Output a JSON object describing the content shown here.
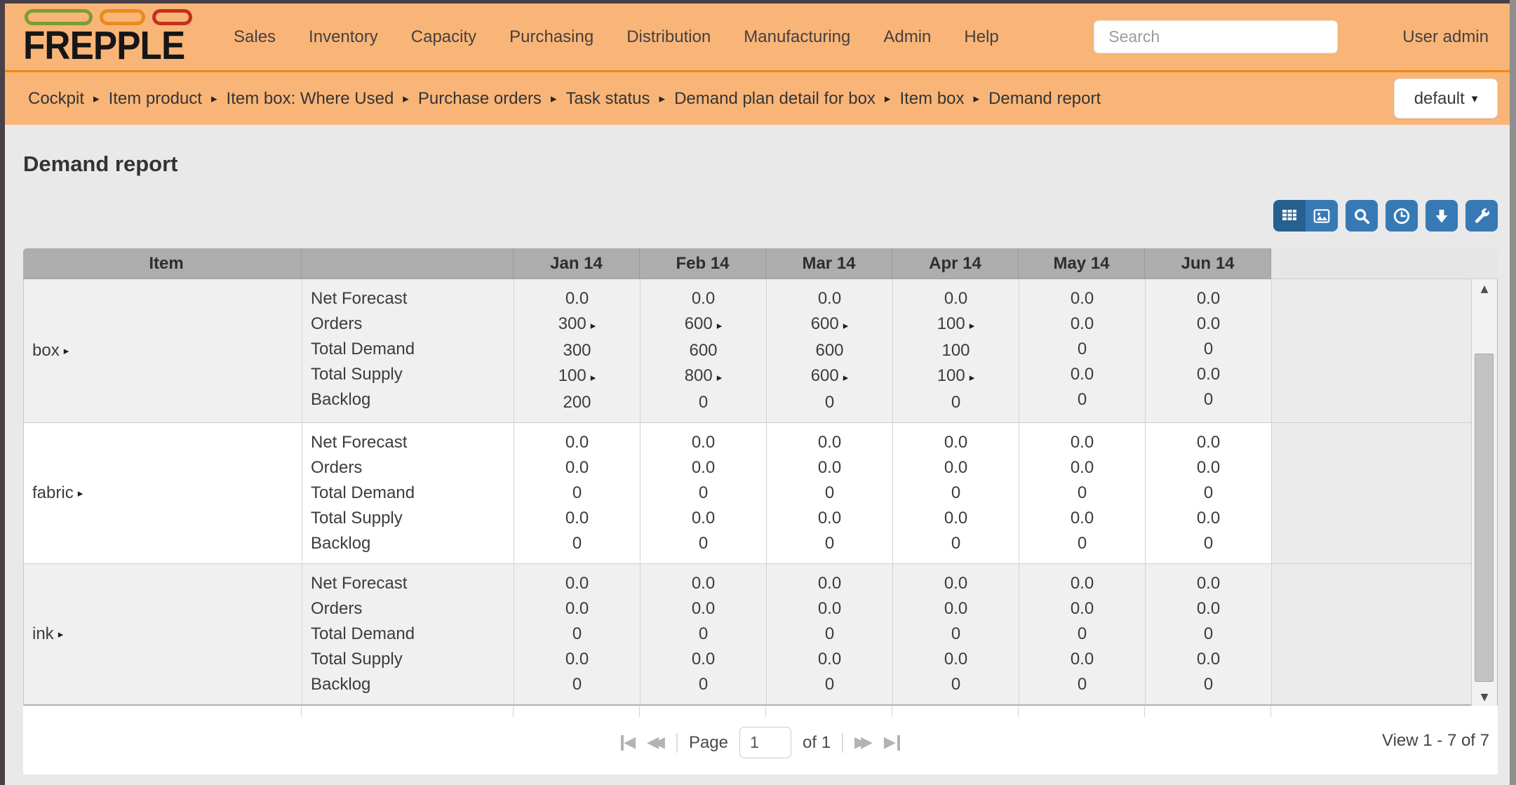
{
  "navbar": {
    "logo_text": "FREPPLE",
    "logo_pill_colors": [
      "#7d9d2f",
      "#e98c1e",
      "#c4301c"
    ],
    "menu_items": [
      "Sales",
      "Inventory",
      "Capacity",
      "Purchasing",
      "Distribution",
      "Manufacturing",
      "Admin",
      "Help"
    ],
    "search_placeholder": "Search",
    "user_label": "User admin"
  },
  "breadcrumb": {
    "items": [
      "Cockpit",
      "Item product",
      "Item box: Where Used",
      "Purchase orders",
      "Task status",
      "Demand plan detail for box",
      "Item box",
      "Demand report"
    ],
    "theme_button_label": "default"
  },
  "page": {
    "title": "Demand report"
  },
  "toolbar": {
    "buttons": [
      "table-view",
      "graph-view",
      "search",
      "time-buckets",
      "download",
      "customize"
    ],
    "accent_blue": "#3779b5",
    "accent_blue_active": "#26608f"
  },
  "grid": {
    "item_header": "Item",
    "month_headers": [
      "Jan 14",
      "Feb 14",
      "Mar 14",
      "Apr 14",
      "May 14",
      "Jun 14"
    ],
    "measures": [
      "Net Forecast",
      "Orders",
      "Total Demand",
      "Total Supply",
      "Backlog"
    ],
    "rows": [
      {
        "item": "box",
        "values": [
          [
            "0.0",
            "0.0",
            "0.0",
            "0.0",
            "0.0",
            "0.0"
          ],
          [
            "300",
            "600",
            "600",
            "100",
            "0.0",
            "0.0"
          ],
          [
            "300",
            "600",
            "600",
            "100",
            "0",
            "0"
          ],
          [
            "100",
            "800",
            "600",
            "100",
            "0.0",
            "0.0"
          ],
          [
            "200",
            "0",
            "0",
            "0",
            "0",
            "0"
          ]
        ],
        "drill": [
          [
            false,
            false,
            false,
            false,
            false,
            false
          ],
          [
            true,
            true,
            true,
            true,
            false,
            false
          ],
          [
            false,
            false,
            false,
            false,
            false,
            false
          ],
          [
            true,
            true,
            true,
            true,
            false,
            false
          ],
          [
            false,
            false,
            false,
            false,
            false,
            false
          ]
        ]
      },
      {
        "item": "fabric",
        "values": [
          [
            "0.0",
            "0.0",
            "0.0",
            "0.0",
            "0.0",
            "0.0"
          ],
          [
            "0.0",
            "0.0",
            "0.0",
            "0.0",
            "0.0",
            "0.0"
          ],
          [
            "0",
            "0",
            "0",
            "0",
            "0",
            "0"
          ],
          [
            "0.0",
            "0.0",
            "0.0",
            "0.0",
            "0.0",
            "0.0"
          ],
          [
            "0",
            "0",
            "0",
            "0",
            "0",
            "0"
          ]
        ],
        "drill": [
          [
            false,
            false,
            false,
            false,
            false,
            false
          ],
          [
            false,
            false,
            false,
            false,
            false,
            false
          ],
          [
            false,
            false,
            false,
            false,
            false,
            false
          ],
          [
            false,
            false,
            false,
            false,
            false,
            false
          ],
          [
            false,
            false,
            false,
            false,
            false,
            false
          ]
        ]
      },
      {
        "item": "ink",
        "values": [
          [
            "0.0",
            "0.0",
            "0.0",
            "0.0",
            "0.0",
            "0.0"
          ],
          [
            "0.0",
            "0.0",
            "0.0",
            "0.0",
            "0.0",
            "0.0"
          ],
          [
            "0",
            "0",
            "0",
            "0",
            "0",
            "0"
          ],
          [
            "0.0",
            "0.0",
            "0.0",
            "0.0",
            "0.0",
            "0.0"
          ],
          [
            "0",
            "0",
            "0",
            "0",
            "0",
            "0"
          ]
        ],
        "drill": [
          [
            false,
            false,
            false,
            false,
            false,
            false
          ],
          [
            false,
            false,
            false,
            false,
            false,
            false
          ],
          [
            false,
            false,
            false,
            false,
            false,
            false
          ],
          [
            false,
            false,
            false,
            false,
            false,
            false
          ],
          [
            false,
            false,
            false,
            false,
            false,
            false
          ]
        ]
      }
    ]
  },
  "pager": {
    "page_label": "Page",
    "page_value": "1",
    "of_text": "of 1",
    "view_text": "View 1 - 7 of 7",
    "icons": [
      "first-page",
      "prev-page",
      "next-page",
      "last-page"
    ]
  },
  "colors": {
    "navbar_orange": "#f9b578",
    "navbar_divider": "#ed8a0e",
    "header_gray": "#adadad",
    "page_bg": "#e9e9e9"
  }
}
